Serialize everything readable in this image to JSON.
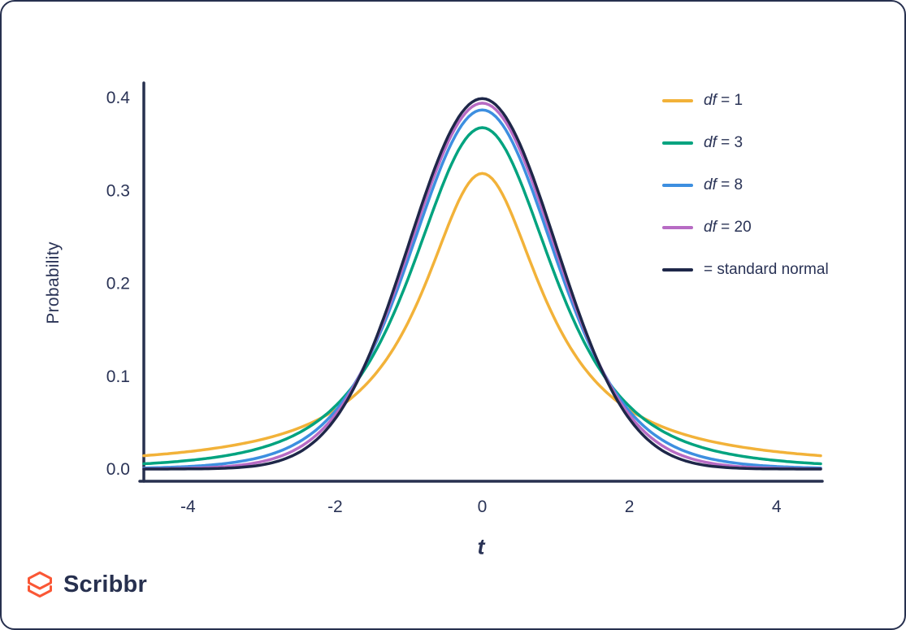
{
  "branding": {
    "name": "Scribbr",
    "logo_color": "#FA5735"
  },
  "chart_data": {
    "type": "line",
    "title": "",
    "xlabel": "t",
    "ylabel": "Probability",
    "x_ticks": [
      "-4",
      "-2",
      "0",
      "2",
      "4"
    ],
    "x_tick_values": [
      -4,
      -2,
      0,
      2,
      4
    ],
    "y_ticks": [
      "0.0",
      "0.1",
      "0.2",
      "0.3",
      "0.4"
    ],
    "y_tick_values": [
      0,
      0.1,
      0.2,
      0.3,
      0.4
    ],
    "xlim": [
      -4.6,
      4.6
    ],
    "ylim": [
      -0.013,
      0.42
    ],
    "grid": false,
    "legend_position": "top-right",
    "axis_color": "#27304F",
    "text_color": "#2A3356",
    "series": [
      {
        "name": "df = 1",
        "label_italic": "df",
        "label_rest": " = 1",
        "df": 1,
        "coef": 0.3183,
        "peak_density": 0.318,
        "color": "#F2B239"
      },
      {
        "name": "df = 3",
        "label_italic": "df",
        "label_rest": " = 3",
        "df": 3,
        "coef": 0.3676,
        "peak_density": 0.368,
        "color": "#00A37F"
      },
      {
        "name": "df = 8",
        "label_italic": "df",
        "label_rest": " = 8",
        "df": 8,
        "coef": 0.3867,
        "peak_density": 0.387,
        "color": "#3D8FE0"
      },
      {
        "name": "df = 20",
        "label_italic": "df",
        "label_rest": " = 20",
        "df": 20,
        "coef": 0.394,
        "peak_density": 0.394,
        "color": "#B76BC4"
      },
      {
        "name": "= standard normal",
        "label_italic": "",
        "label_rest": "= standard normal",
        "df": null,
        "coef": 0.3989,
        "peak_density": 0.399,
        "color": "#1E2749"
      }
    ]
  }
}
